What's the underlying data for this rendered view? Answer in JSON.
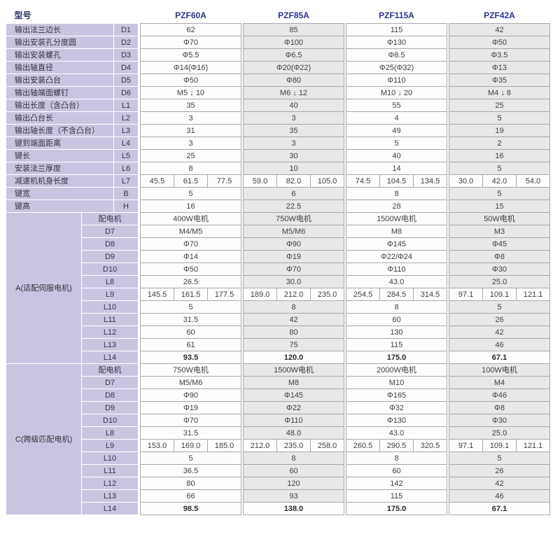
{
  "colors": {
    "model_header_blue": "#2e3192",
    "label_lavender": "#c9c5e0",
    "cell_gray": "#e8e8e8",
    "cell_white": "#fdfdfd",
    "border_gray": "#a9a9a9"
  },
  "table": {
    "header": {
      "corner": "型号",
      "models": [
        "PZF60A",
        "PZF85A",
        "PZF115A",
        "PZF42A"
      ]
    },
    "sections": [
      {
        "label": null,
        "rows": [
          {
            "name": "输出法兰边长",
            "code": "D1",
            "values": [
              "62",
              "85",
              "115",
              "42"
            ]
          },
          {
            "name": "输出安装孔分度圆",
            "code": "D2",
            "values": [
              "Φ70",
              "Φ100",
              "Φ130",
              "Φ50"
            ]
          },
          {
            "name": "输出安装螺孔",
            "code": "D3",
            "values": [
              "Φ5.5",
              "Φ6.5",
              "Φ8.5",
              "Φ3.5"
            ]
          },
          {
            "name": "输出轴直径",
            "code": "D4",
            "values": [
              "Φ14(Φ16)",
              "Φ20(Φ22)",
              "Φ25(Φ32)",
              "Φ13"
            ]
          },
          {
            "name": "输出安装凸台",
            "code": "D5",
            "values": [
              "Φ50",
              "Φ80",
              "Φ110",
              "Φ35"
            ]
          },
          {
            "name": "输出轴端面螺钉",
            "code": "D6",
            "values": [
              "M5 ↓ 10",
              "M6 ↓ 12",
              "M10 ↓ 20",
              "M4 ↓ 8"
            ]
          },
          {
            "name": "输出长度（含凸台）",
            "code": "L1",
            "values": [
              "35",
              "40",
              "55",
              "25"
            ]
          },
          {
            "name": "输出凸台长",
            "code": "L2",
            "values": [
              "3",
              "3",
              "4",
              "5"
            ]
          },
          {
            "name": "输出轴长度（不含凸台）",
            "code": "L3",
            "values": [
              "31",
              "35",
              "49",
              "19"
            ]
          },
          {
            "name": "键到端面距离",
            "code": "L4",
            "values": [
              "3",
              "3",
              "5",
              "2"
            ]
          },
          {
            "name": "键长",
            "code": "L5",
            "values": [
              "25",
              "30",
              "40",
              "16"
            ]
          },
          {
            "name": "安装法兰厚度",
            "code": "L6",
            "values": [
              "8",
              "10",
              "14",
              "5"
            ]
          },
          {
            "name": "减速机机身长度",
            "code": "L7",
            "values": [
              [
                "45.5",
                "61.5",
                "77.5"
              ],
              [
                "59.0",
                "82.0",
                "105.0"
              ],
              [
                "74.5",
                "104.5",
                "134.5"
              ],
              [
                "30.0",
                "42.0",
                "54.0"
              ]
            ]
          },
          {
            "name": "键宽",
            "code": "B",
            "values": [
              "5",
              "6",
              "8",
              "5"
            ]
          },
          {
            "name": "键高",
            "code": "H",
            "values": [
              "16",
              "22.5",
              "28",
              "15"
            ]
          }
        ]
      },
      {
        "label": "A(适配伺服电机)",
        "rows": [
          {
            "code": "配电机",
            "values": [
              "400W电机",
              "750W电机",
              "1500W电机",
              "50W电机"
            ]
          },
          {
            "code": "D7",
            "values": [
              "M4/M5",
              "M5/M6",
              "M8",
              "M3"
            ]
          },
          {
            "code": "D8",
            "values": [
              "Φ70",
              "Φ90",
              "Φ145",
              "Φ45"
            ]
          },
          {
            "code": "D9",
            "values": [
              "Φ14",
              "Φ19",
              "Φ22/Φ24",
              "Φ8"
            ]
          },
          {
            "code": "D10",
            "values": [
              "Φ50",
              "Φ70",
              "Φ110",
              "Φ30"
            ]
          },
          {
            "code": "L8",
            "values": [
              "26.5",
              "30.0",
              "43.0",
              "25.0"
            ]
          },
          {
            "code": "L9",
            "values": [
              [
                "145.5",
                "161.5",
                "177.5"
              ],
              [
                "189.0",
                "212.0",
                "235.0"
              ],
              [
                "254.5",
                "284.5",
                "314.5"
              ],
              [
                "97.1",
                "109.1",
                "121.1"
              ]
            ]
          },
          {
            "code": "L10",
            "values": [
              "5",
              "8",
              "8",
              "5"
            ]
          },
          {
            "code": "L11",
            "values": [
              "31.5",
              "42",
              "60",
              "26"
            ]
          },
          {
            "code": "L12",
            "values": [
              "60",
              "80",
              "130",
              "42"
            ]
          },
          {
            "code": "L13",
            "values": [
              "61",
              "75",
              "115",
              "46"
            ]
          },
          {
            "code": "L14",
            "highlight": true,
            "values": [
              "93.5",
              "120.0",
              "175.0",
              "67.1"
            ]
          }
        ]
      },
      {
        "label": "C(跨级匹配电机)",
        "rows": [
          {
            "code": "配电机",
            "values": [
              "750W电机",
              "1500W电机",
              "2000W电机",
              "100W电机"
            ]
          },
          {
            "code": "D7",
            "values": [
              "M5/M6",
              "M8",
              "M10",
              "M4"
            ]
          },
          {
            "code": "D8",
            "values": [
              "Φ90",
              "Φ145",
              "Φ165",
              "Φ46"
            ]
          },
          {
            "code": "D9",
            "values": [
              "Φ19",
              "Φ22",
              "Φ32",
              "Φ8"
            ]
          },
          {
            "code": "D10",
            "values": [
              "Φ70",
              "Φ110",
              "Φ130",
              "Φ30"
            ]
          },
          {
            "code": "L8",
            "values": [
              "31.5",
              "48.0",
              "43.0",
              "25.0"
            ]
          },
          {
            "code": "L9",
            "values": [
              [
                "153.0",
                "169.0",
                "185.0"
              ],
              [
                "212.0",
                "235.0",
                "258.0"
              ],
              [
                "260.5",
                "290.5",
                "320.5"
              ],
              [
                "97.1",
                "109.1",
                "121.1"
              ]
            ]
          },
          {
            "code": "L10",
            "values": [
              "5",
              "8",
              "8",
              "5"
            ]
          },
          {
            "code": "L11",
            "values": [
              "36.5",
              "60",
              "60",
              "26"
            ]
          },
          {
            "code": "L12",
            "values": [
              "80",
              "120",
              "142",
              "42"
            ]
          },
          {
            "code": "L13",
            "values": [
              "66",
              "93",
              "115",
              "46"
            ]
          },
          {
            "code": "L14",
            "highlight": true,
            "values": [
              "98.5",
              "138.0",
              "175.0",
              "67.1"
            ]
          }
        ]
      }
    ]
  }
}
